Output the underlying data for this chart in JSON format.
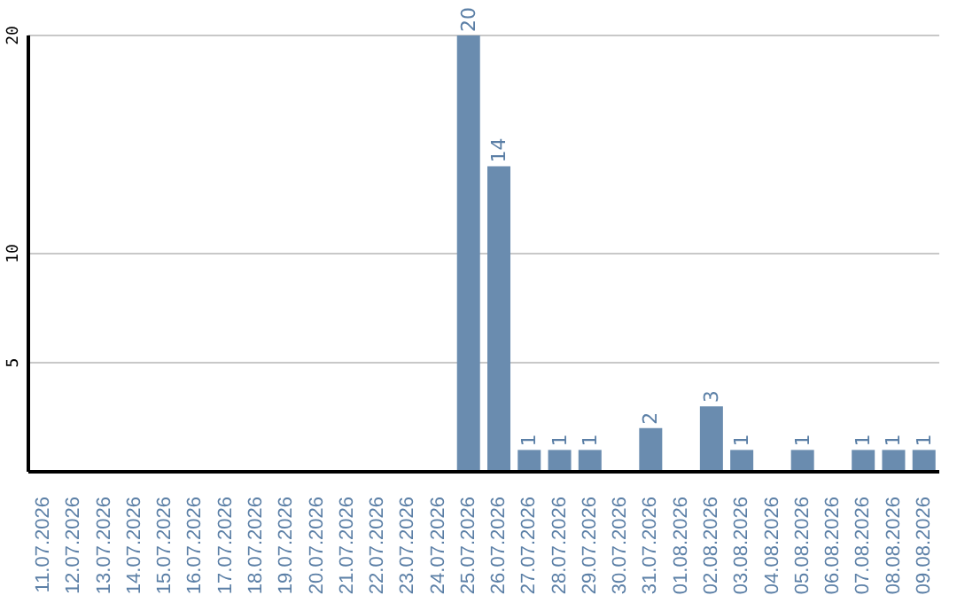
{
  "chart_data": {
    "type": "bar",
    "categories": [
      "11.07.2026",
      "12.07.2026",
      "13.07.2026",
      "14.07.2026",
      "15.07.2026",
      "16.07.2026",
      "17.07.2026",
      "18.07.2026",
      "19.07.2026",
      "20.07.2026",
      "21.07.2026",
      "22.07.2026",
      "23.07.2026",
      "24.07.2026",
      "25.07.2026",
      "26.07.2026",
      "27.07.2026",
      "28.07.2026",
      "29.07.2026",
      "30.07.2026",
      "31.07.2026",
      "01.08.2026",
      "02.08.2026",
      "03.08.2026",
      "04.08.2026",
      "05.08.2026",
      "06.08.2026",
      "07.08.2026",
      "08.08.2026",
      "09.08.2026"
    ],
    "values": [
      0,
      0,
      0,
      0,
      0,
      0,
      0,
      0,
      0,
      0,
      0,
      0,
      0,
      0,
      20,
      14,
      1,
      1,
      1,
      0,
      2,
      0,
      3,
      1,
      0,
      1,
      0,
      1,
      1,
      1
    ],
    "value_labels": [
      null,
      null,
      null,
      null,
      null,
      null,
      null,
      null,
      null,
      null,
      null,
      null,
      null,
      null,
      "20",
      "14",
      "1",
      "1",
      "1",
      null,
      "2",
      null,
      "3",
      "1",
      null,
      "1",
      null,
      "1",
      "1",
      "1"
    ],
    "color": "#6a8caf",
    "ylim": [
      0,
      20
    ],
    "yticks": [
      5,
      10,
      20
    ],
    "grid": "y"
  }
}
